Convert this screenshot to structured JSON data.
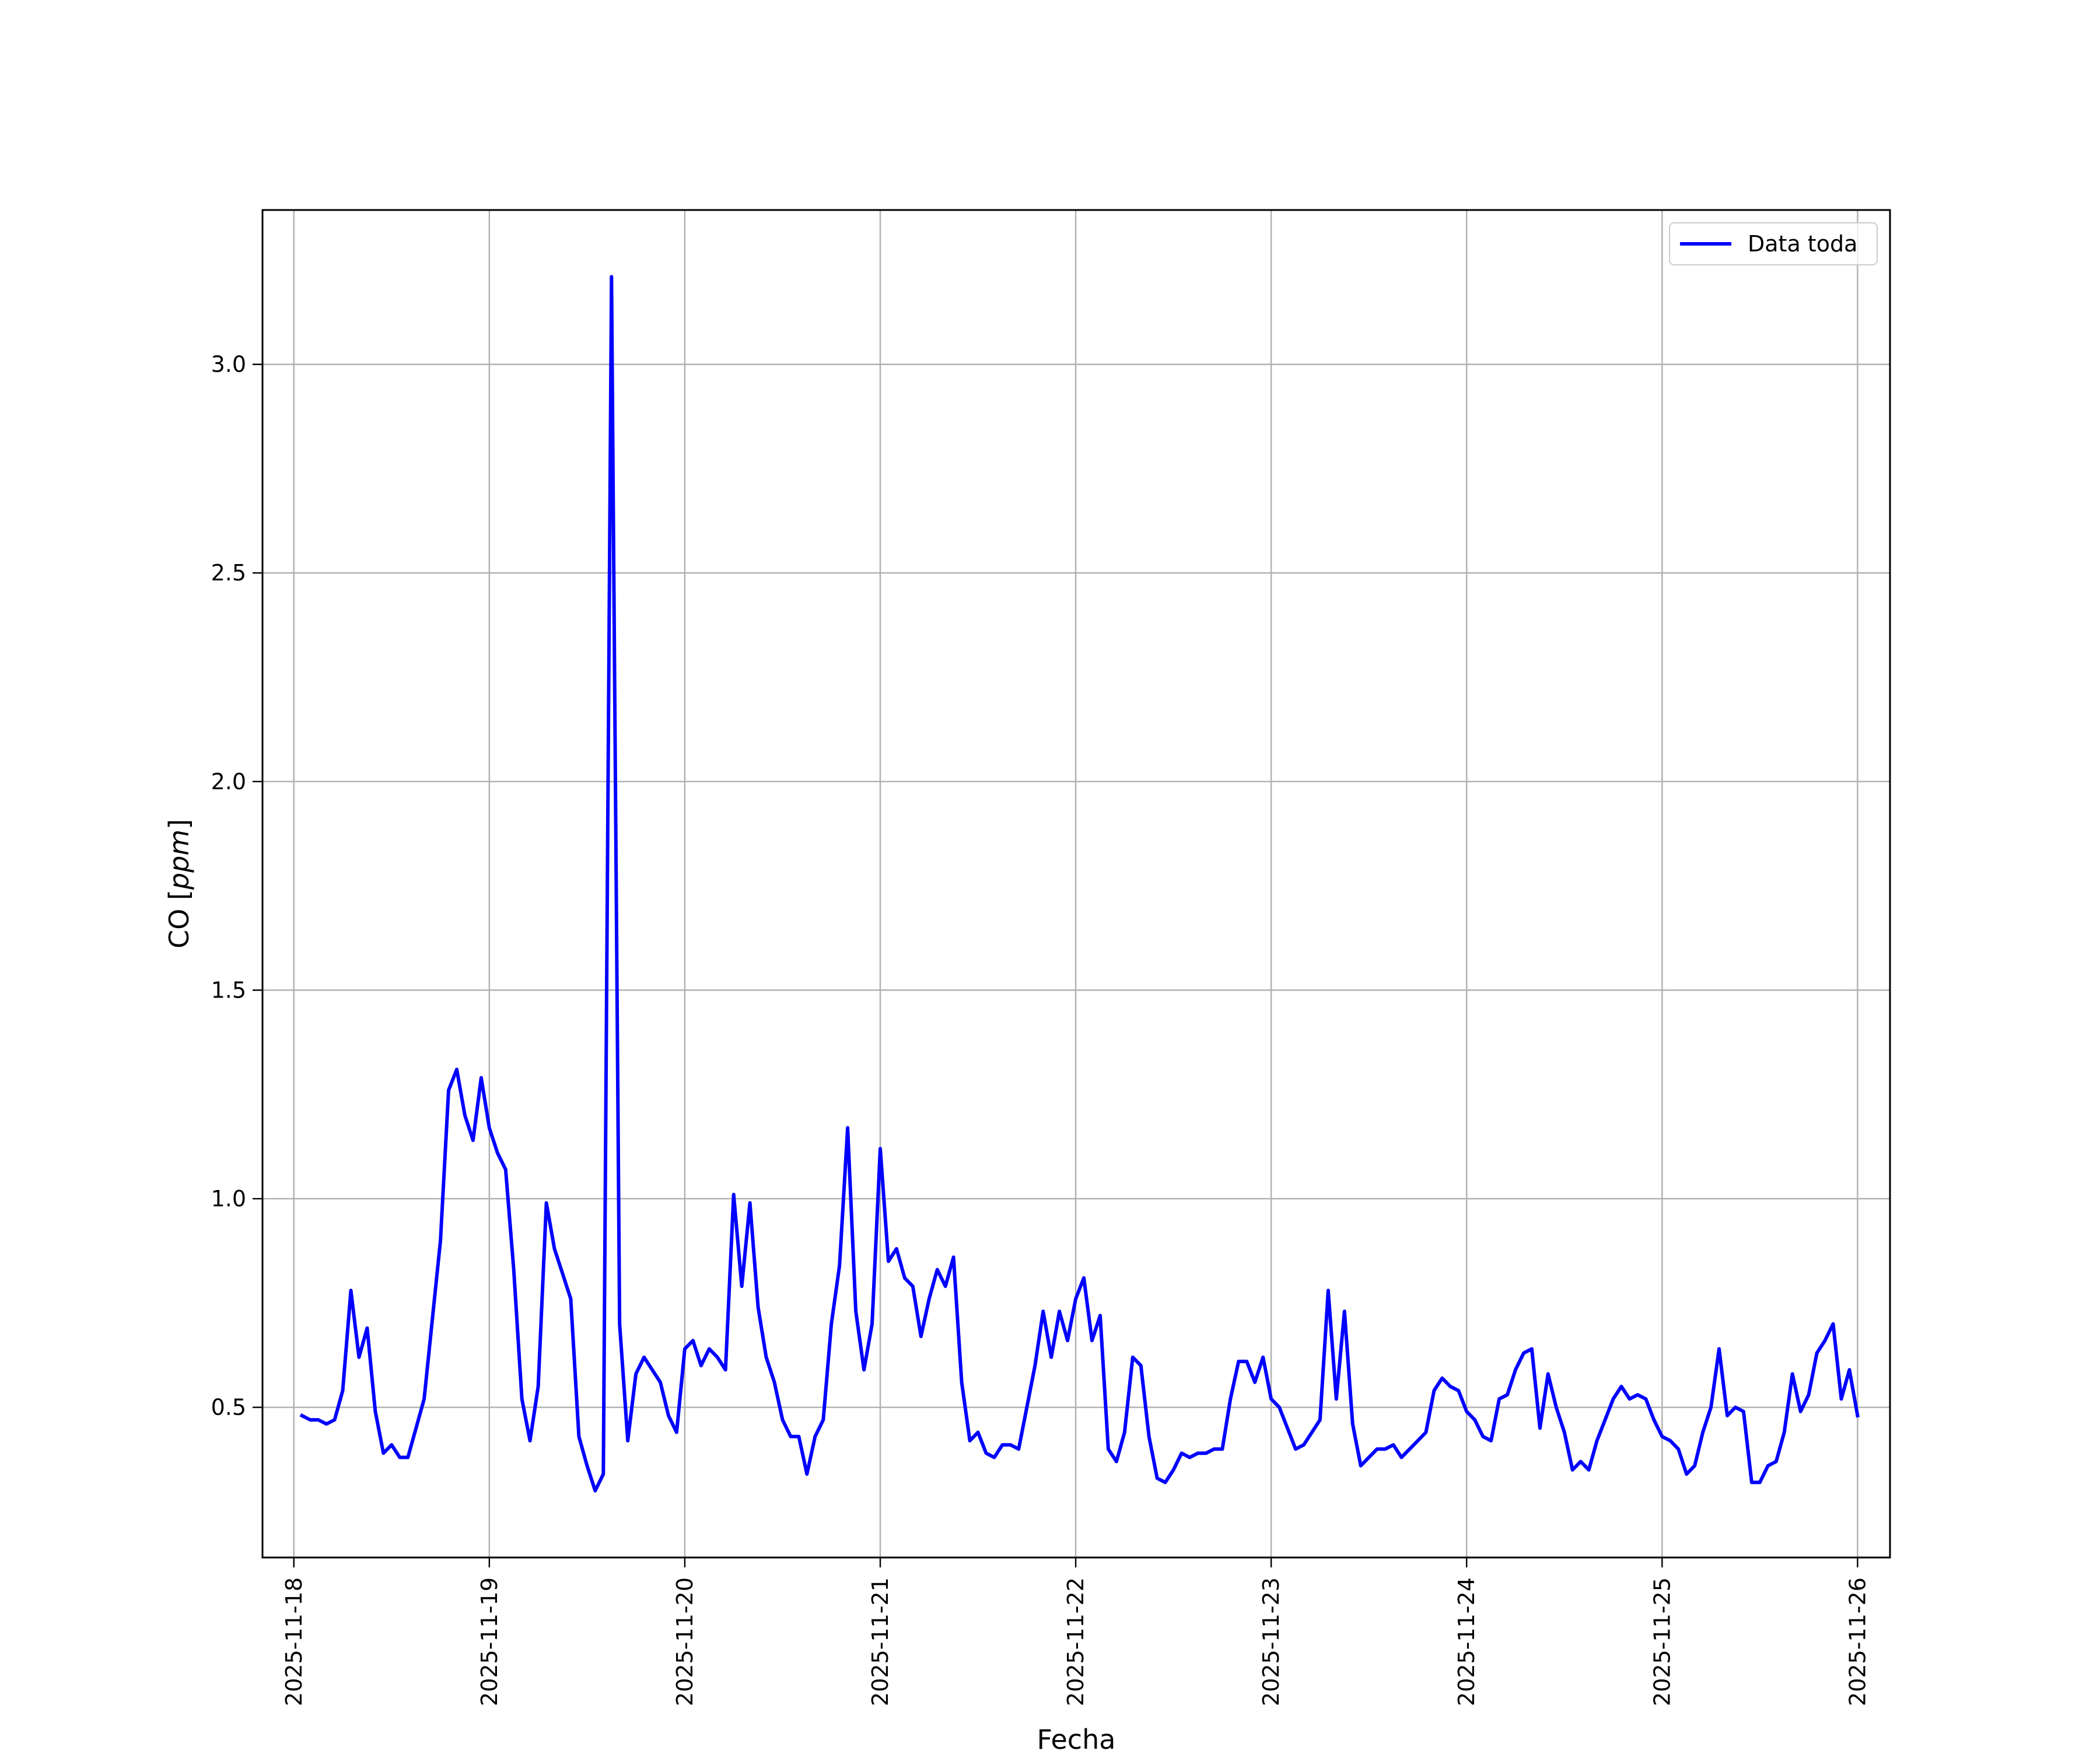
{
  "chart_data": {
    "type": "line",
    "xlabel": "Fecha",
    "ylabel_main": "CO [",
    "ylabel_unit": "ppm",
    "ylabel_close": "]",
    "xlim": [
      "2025-11-17T20:09",
      "2025-11-26T03:59"
    ],
    "ylim": [
      0.14,
      3.37
    ],
    "grid": true,
    "legend_position": "top-right",
    "x_ticks": [
      "2025-11-18",
      "2025-11-19",
      "2025-11-20",
      "2025-11-21",
      "2025-11-22",
      "2025-11-23",
      "2025-11-24",
      "2025-11-25",
      "2025-11-26"
    ],
    "y_ticks": [
      {
        "value": 0.5,
        "label": "0.5"
      },
      {
        "value": 1.0,
        "label": "1.0"
      },
      {
        "value": 1.5,
        "label": "1.5"
      },
      {
        "value": 2.0,
        "label": "2.0"
      },
      {
        "value": 2.5,
        "label": "2.5"
      },
      {
        "value": 3.0,
        "label": "3.0"
      }
    ],
    "series": [
      {
        "name": "Data toda",
        "color": "#0000ff",
        "x": [
          "2025-11-18T01:00",
          "2025-11-18T02:00",
          "2025-11-18T03:00",
          "2025-11-18T04:00",
          "2025-11-18T05:00",
          "2025-11-18T06:00",
          "2025-11-18T07:00",
          "2025-11-18T08:00",
          "2025-11-18T09:00",
          "2025-11-18T10:00",
          "2025-11-18T11:00",
          "2025-11-18T12:00",
          "2025-11-18T13:00",
          "2025-11-18T14:00",
          "2025-11-18T15:00",
          "2025-11-18T16:00",
          "2025-11-18T17:00",
          "2025-11-18T18:00",
          "2025-11-18T19:00",
          "2025-11-18T20:00",
          "2025-11-18T21:00",
          "2025-11-18T22:00",
          "2025-11-18T23:00",
          "2025-11-19T00:00",
          "2025-11-19T01:00",
          "2025-11-19T02:00",
          "2025-11-19T03:00",
          "2025-11-19T04:00",
          "2025-11-19T05:00",
          "2025-11-19T06:00",
          "2025-11-19T07:00",
          "2025-11-19T08:00",
          "2025-11-19T09:00",
          "2025-11-19T10:00",
          "2025-11-19T11:00",
          "2025-11-19T12:00",
          "2025-11-19T13:00",
          "2025-11-19T14:00",
          "2025-11-19T15:00",
          "2025-11-19T16:00",
          "2025-11-19T17:00",
          "2025-11-19T18:00",
          "2025-11-19T19:00",
          "2025-11-19T20:00",
          "2025-11-19T21:00",
          "2025-11-19T22:00",
          "2025-11-19T23:00",
          "2025-11-20T00:00",
          "2025-11-20T01:00",
          "2025-11-20T02:00",
          "2025-11-20T03:00",
          "2025-11-20T04:00",
          "2025-11-20T05:00",
          "2025-11-20T06:00",
          "2025-11-20T07:00",
          "2025-11-20T08:00",
          "2025-11-20T09:00",
          "2025-11-20T10:00",
          "2025-11-20T11:00",
          "2025-11-20T12:00",
          "2025-11-20T13:00",
          "2025-11-20T14:00",
          "2025-11-20T15:00",
          "2025-11-20T16:00",
          "2025-11-20T17:00",
          "2025-11-20T18:00",
          "2025-11-20T19:00",
          "2025-11-20T20:00",
          "2025-11-20T21:00",
          "2025-11-20T22:00",
          "2025-11-20T23:00",
          "2025-11-21T00:00",
          "2025-11-21T01:00",
          "2025-11-21T02:00",
          "2025-11-21T03:00",
          "2025-11-21T04:00",
          "2025-11-21T05:00",
          "2025-11-21T06:00",
          "2025-11-21T07:00",
          "2025-11-21T08:00",
          "2025-11-21T09:00",
          "2025-11-21T10:00",
          "2025-11-21T11:00",
          "2025-11-21T12:00",
          "2025-11-21T13:00",
          "2025-11-21T14:00",
          "2025-11-21T15:00",
          "2025-11-21T16:00",
          "2025-11-21T17:00",
          "2025-11-21T18:00",
          "2025-11-21T19:00",
          "2025-11-21T20:00",
          "2025-11-21T21:00",
          "2025-11-21T22:00",
          "2025-11-21T23:00",
          "2025-11-22T00:00",
          "2025-11-22T01:00",
          "2025-11-22T02:00",
          "2025-11-22T03:00",
          "2025-11-22T04:00",
          "2025-11-22T05:00",
          "2025-11-22T06:00",
          "2025-11-22T07:00",
          "2025-11-22T08:00",
          "2025-11-22T09:00",
          "2025-11-22T10:00",
          "2025-11-22T11:00",
          "2025-11-22T12:00",
          "2025-11-22T13:00",
          "2025-11-22T14:00",
          "2025-11-22T15:00",
          "2025-11-22T16:00",
          "2025-11-22T17:00",
          "2025-11-22T18:00",
          "2025-11-22T19:00",
          "2025-11-22T20:00",
          "2025-11-22T21:00",
          "2025-11-22T22:00",
          "2025-11-22T23:00",
          "2025-11-23T00:00",
          "2025-11-23T01:00",
          "2025-11-23T02:00",
          "2025-11-23T03:00",
          "2025-11-23T04:00",
          "2025-11-23T05:00",
          "2025-11-23T06:00",
          "2025-11-23T07:00",
          "2025-11-23T08:00",
          "2025-11-23T09:00",
          "2025-11-23T10:00",
          "2025-11-23T11:00",
          "2025-11-23T12:00",
          "2025-11-23T13:00",
          "2025-11-23T14:00",
          "2025-11-23T15:00",
          "2025-11-23T16:00",
          "2025-11-23T17:00",
          "2025-11-23T18:00",
          "2025-11-23T19:00",
          "2025-11-23T20:00",
          "2025-11-23T21:00",
          "2025-11-23T22:00",
          "2025-11-23T23:00",
          "2025-11-24T00:00",
          "2025-11-24T01:00",
          "2025-11-24T02:00",
          "2025-11-24T03:00",
          "2025-11-24T04:00",
          "2025-11-24T05:00",
          "2025-11-24T06:00",
          "2025-11-24T07:00",
          "2025-11-24T08:00",
          "2025-11-24T09:00",
          "2025-11-24T10:00",
          "2025-11-24T11:00",
          "2025-11-24T12:00",
          "2025-11-24T13:00",
          "2025-11-24T14:00",
          "2025-11-24T15:00",
          "2025-11-24T16:00",
          "2025-11-24T17:00",
          "2025-11-24T18:00",
          "2025-11-24T19:00",
          "2025-11-24T20:00",
          "2025-11-24T21:00",
          "2025-11-24T22:00",
          "2025-11-24T23:00",
          "2025-11-25T00:00",
          "2025-11-25T01:00",
          "2025-11-25T02:00",
          "2025-11-25T03:00",
          "2025-11-25T04:00",
          "2025-11-25T05:00",
          "2025-11-25T06:00",
          "2025-11-25T07:00",
          "2025-11-25T08:00",
          "2025-11-25T09:00",
          "2025-11-25T10:00",
          "2025-11-25T11:00",
          "2025-11-25T12:00",
          "2025-11-25T13:00",
          "2025-11-25T14:00",
          "2025-11-25T15:00",
          "2025-11-25T16:00",
          "2025-11-25T17:00",
          "2025-11-25T18:00",
          "2025-11-25T19:00",
          "2025-11-25T20:00",
          "2025-11-25T21:00",
          "2025-11-25T22:00",
          "2025-11-25T23:00",
          "2025-11-26T00:00"
        ],
        "values": [
          0.48,
          0.47,
          0.47,
          0.46,
          0.47,
          0.54,
          0.78,
          0.62,
          0.69,
          0.49,
          0.39,
          0.41,
          0.38,
          0.38,
          0.45,
          0.52,
          0.71,
          0.9,
          1.26,
          1.31,
          1.2,
          1.14,
          1.29,
          1.17,
          1.11,
          1.07,
          0.83,
          0.52,
          0.42,
          0.55,
          0.99,
          0.88,
          0.82,
          0.76,
          0.43,
          0.36,
          0.3,
          0.34,
          3.21,
          0.7,
          0.42,
          0.58,
          0.62,
          0.59,
          0.56,
          0.48,
          0.44,
          0.64,
          0.66,
          0.6,
          0.64,
          0.62,
          0.59,
          1.01,
          0.79,
          0.99,
          0.74,
          0.62,
          0.56,
          0.47,
          0.43,
          0.43,
          0.34,
          0.43,
          0.47,
          0.7,
          0.84,
          1.17,
          0.73,
          0.59,
          0.7,
          1.12,
          0.85,
          0.88,
          0.81,
          0.79,
          0.67,
          0.76,
          0.83,
          0.79,
          0.86,
          0.56,
          0.42,
          0.44,
          0.39,
          0.38,
          0.41,
          0.41,
          0.4,
          0.5,
          0.6,
          0.73,
          0.62,
          0.73,
          0.66,
          0.76,
          0.81,
          0.66,
          0.72,
          0.4,
          0.37,
          0.44,
          0.62,
          0.6,
          0.43,
          0.33,
          0.32,
          0.35,
          0.39,
          0.38,
          0.39,
          0.39,
          0.4,
          0.4,
          0.52,
          0.61,
          0.61,
          0.56,
          0.62,
          0.52,
          0.5,
          0.45,
          0.4,
          0.41,
          0.44,
          0.47,
          0.78,
          0.52,
          0.73,
          0.46,
          0.36,
          0.38,
          0.4,
          0.4,
          0.41,
          0.38,
          0.4,
          0.42,
          0.44,
          0.54,
          0.57,
          0.55,
          0.54,
          0.49,
          0.47,
          0.43,
          0.42,
          0.52,
          0.53,
          0.59,
          0.63,
          0.64,
          0.45,
          0.58,
          0.5,
          0.44,
          0.35,
          0.37,
          0.35,
          0.42,
          0.47,
          0.52,
          0.55,
          0.52,
          0.53,
          0.52,
          0.47,
          0.43,
          0.42,
          0.4,
          0.34,
          0.36,
          0.44,
          0.5,
          0.64,
          0.48,
          0.5,
          0.49,
          0.32,
          0.32,
          0.36,
          0.37,
          0.44,
          0.58,
          0.49,
          0.53,
          0.63,
          0.66,
          0.7,
          0.52,
          0.59,
          0.48
        ]
      }
    ]
  }
}
